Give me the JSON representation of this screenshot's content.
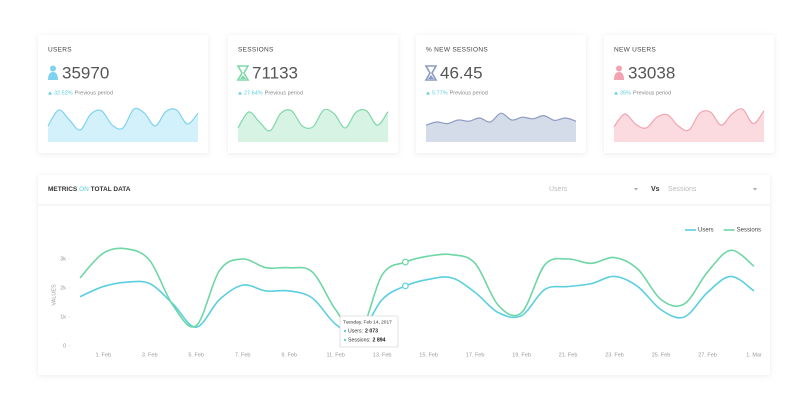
{
  "cards": [
    {
      "label": "USERS",
      "value": "35970",
      "change": "32.52%",
      "period": "Previous period",
      "color": "#7fd3f0",
      "fill": "#d3f1fb",
      "sparkline": [
        40,
        80,
        55,
        30,
        70,
        78,
        42,
        35,
        82,
        72,
        40,
        76,
        80,
        45,
        72
      ]
    },
    {
      "label": "SESSIONS",
      "value": "71133",
      "change": "27.64%",
      "period": "Previous period",
      "color": "#80d8a9",
      "fill": "#d7f3e4",
      "sparkline": [
        35,
        75,
        50,
        28,
        72,
        78,
        40,
        38,
        80,
        70,
        35,
        74,
        78,
        42,
        76
      ]
    },
    {
      "label": "% NEW SESSIONS",
      "value": "46.45",
      "change": "5.77%",
      "period": "Previous period",
      "color": "#8c9bc2",
      "fill": "#d4dcea",
      "sparkline": [
        42,
        50,
        46,
        55,
        52,
        60,
        50,
        72,
        55,
        62,
        58,
        66,
        54,
        60,
        52
      ]
    },
    {
      "label": "NEW USERS",
      "value": "33038",
      "change": "35%",
      "period": "Previous period",
      "color": "#f3a3b1",
      "fill": "#fbdbe0",
      "sparkline": [
        38,
        70,
        45,
        35,
        62,
        68,
        40,
        30,
        72,
        75,
        42,
        70,
        82,
        46,
        78
      ]
    }
  ],
  "panel": {
    "title_a": "METRICS",
    "title_b": "ON",
    "title_c": "TOTAL DATA",
    "select_a": "Users",
    "vs": "Vs",
    "select_b": "Sessions"
  },
  "chart_data": {
    "type": "line",
    "y_label": "VALUES",
    "categories": [
      null,
      "1. Feb",
      null,
      "3. Feb",
      null,
      "5. Feb",
      null,
      "7. Feb",
      null,
      "9. Feb",
      null,
      "11. Feb",
      null,
      "13. Feb",
      null,
      "15. Feb",
      null,
      "17. Feb",
      null,
      "19. Feb",
      null,
      "21. Feb",
      null,
      "23. Feb",
      null,
      "25. Feb",
      null,
      "27. Feb",
      null,
      "1. Mar"
    ],
    "series": [
      {
        "name": "Users",
        "color": "#5bcfe0",
        "values": [
          1700,
          2050,
          2200,
          2150,
          1450,
          650,
          1600,
          2100,
          1900,
          1900,
          1650,
          750,
          400,
          1600,
          2073,
          2300,
          2350,
          1850,
          1150,
          1050,
          1950,
          2050,
          2150,
          2400,
          2050,
          1250,
          1000,
          1850,
          2400,
          1900
        ]
      },
      {
        "name": "Sessions",
        "color": "#6fd6a6",
        "values": [
          2350,
          3200,
          3350,
          2950,
          1400,
          700,
          2600,
          3000,
          2700,
          2700,
          2550,
          1250,
          400,
          2450,
          2894,
          3100,
          3150,
          2850,
          1400,
          1150,
          2800,
          3000,
          2850,
          3050,
          2650,
          1600,
          1450,
          2550,
          3300,
          2750
        ]
      }
    ],
    "ylim": [
      0,
      3600
    ],
    "yticks": [
      0,
      {
        "value": 1000,
        "label": "1k"
      },
      {
        "value": 2000,
        "label": "2k"
      },
      {
        "value": 3000,
        "label": "3k"
      }
    ],
    "legend": "top-right",
    "tooltip": {
      "index": 14,
      "date": "Tuesday, Feb 14, 2017",
      "rows": [
        {
          "label": "Users:",
          "value": "2 073"
        },
        {
          "label": "Sessions:",
          "value": "2 894"
        }
      ]
    }
  }
}
